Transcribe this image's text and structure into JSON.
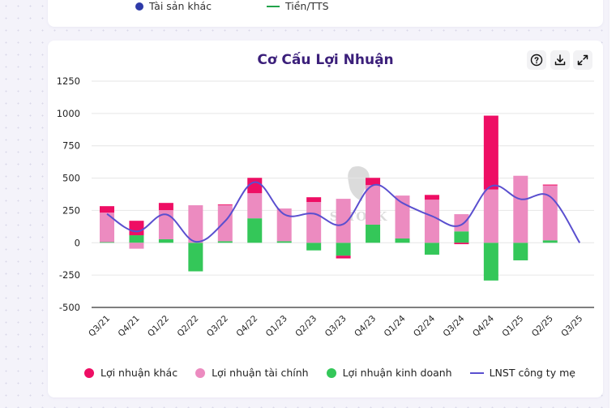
{
  "top_card": {
    "legend": [
      {
        "label": "Tài sản khác",
        "marker": "dot",
        "color": "#2e3aa8"
      },
      {
        "label": "Tiền/TTS",
        "marker": "line",
        "color": "#22a34a"
      }
    ]
  },
  "chart_card": {
    "title": "Cơ Cấu Lợi Nhuận",
    "icons": [
      "help-icon",
      "download-icon",
      "expand-icon"
    ],
    "watermark": "SSTOCK"
  },
  "chart_data": {
    "type": "bar",
    "stacked": true,
    "title": "Cơ Cấu Lợi Nhuận",
    "xlabel": "",
    "ylabel": "",
    "ylim": [
      -500,
      1250
    ],
    "yticks": [
      1250,
      1000,
      750,
      500,
      250,
      0,
      -250,
      -500
    ],
    "grid": true,
    "legend_position": "bottom",
    "categories": [
      "Q3/21",
      "Q4/21",
      "Q1/22",
      "Q2/22",
      "Q3/22",
      "Q4/22",
      "Q1/23",
      "Q2/23",
      "Q3/23",
      "Q4/23",
      "Q1/24",
      "Q2/24",
      "Q3/24",
      "Q4/24",
      "Q1/25",
      "Q2/25",
      "Q3/25"
    ],
    "series": [
      {
        "name": "Lợi nhuận kinh doanh",
        "type": "bar",
        "color": "#34c759",
        "values": [
          5,
          58,
          27,
          -221,
          12,
          189,
          12,
          -59,
          -100,
          140,
          33,
          -92,
          88,
          -292,
          -136,
          19,
          0
        ]
      },
      {
        "name": "Lợi nhuận tài chính",
        "type": "bar",
        "color": "#ec8bc0",
        "values": [
          228,
          -46,
          225,
          290,
          278,
          194,
          253,
          315,
          340,
          306,
          332,
          333,
          133,
          412,
          518,
          424,
          0
        ]
      },
      {
        "name": "Lợi nhuận khác",
        "type": "bar",
        "color": "#ee0e64",
        "values": [
          50,
          112,
          56,
          0,
          6,
          119,
          0,
          37,
          -21,
          56,
          0,
          37,
          -11,
          571,
          0,
          7,
          0
        ]
      },
      {
        "name": "LNST công ty mẹ",
        "type": "line",
        "color": "#5a4fcf",
        "values": [
          223,
          87,
          219,
          8,
          168,
          469,
          220,
          225,
          144,
          444,
          308,
          206,
          140,
          437,
          337,
          357,
          0
        ]
      }
    ]
  },
  "legend": [
    {
      "label": "Lợi nhuận khác",
      "marker": "dot",
      "color": "#ee0e64"
    },
    {
      "label": "Lợi nhuận tài chính",
      "marker": "dot",
      "color": "#ec8bc0"
    },
    {
      "label": "Lợi nhuận kinh doanh",
      "marker": "dot",
      "color": "#34c759"
    },
    {
      "label": "LNST công ty mẹ",
      "marker": "line",
      "color": "#5a4fcf"
    }
  ]
}
